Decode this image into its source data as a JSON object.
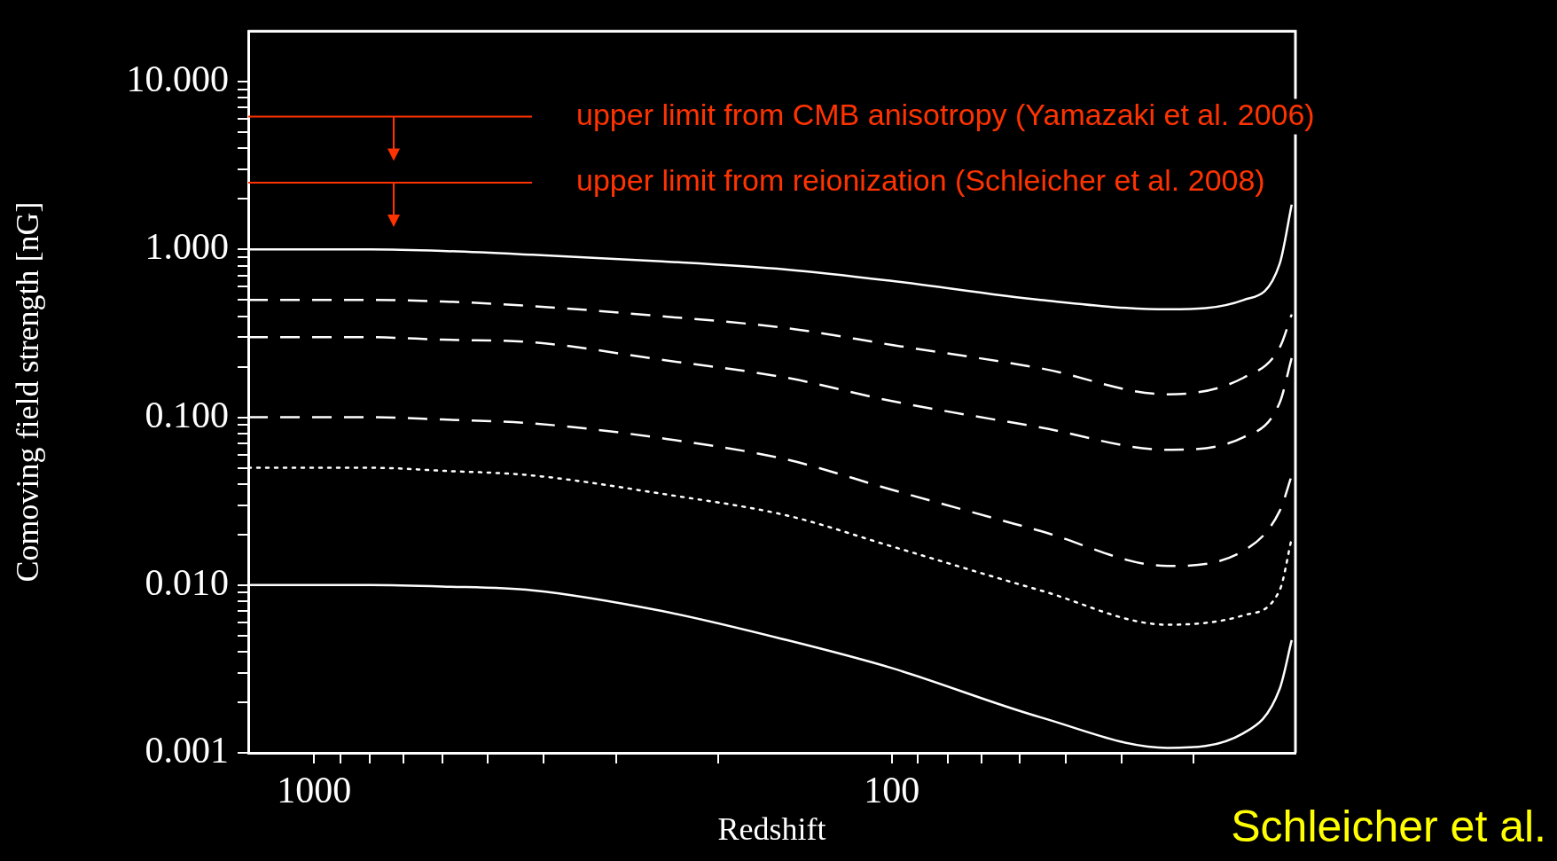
{
  "chart_data": {
    "type": "line",
    "xlabel": "Redshift",
    "ylabel": "Comoving field strength [nG]",
    "log": "xy",
    "grid": false,
    "legend": false,
    "marker": "none",
    "xlim": [
      1300,
      20
    ],
    "ylim": [
      0.001,
      20
    ],
    "xticks": [
      {
        "value": 1000,
        "label": "1000"
      },
      {
        "value": 900,
        "label": null
      },
      {
        "value": 800,
        "label": null
      },
      {
        "value": 700,
        "label": null
      },
      {
        "value": 600,
        "label": null
      },
      {
        "value": 500,
        "label": null
      },
      {
        "value": 400,
        "label": null
      },
      {
        "value": 300,
        "label": null
      },
      {
        "value": 200,
        "label": null
      },
      {
        "value": 100,
        "label": "100"
      },
      {
        "value": 90,
        "label": null
      },
      {
        "value": 80,
        "label": null
      },
      {
        "value": 70,
        "label": null
      },
      {
        "value": 60,
        "label": null
      },
      {
        "value": 50,
        "label": null
      },
      {
        "value": 40,
        "label": null
      },
      {
        "value": 30,
        "label": null
      }
    ],
    "yticks": [
      {
        "value": 0.001,
        "label": "0.001"
      },
      {
        "value": 0.002,
        "label": null
      },
      {
        "value": 0.003,
        "label": null
      },
      {
        "value": 0.004,
        "label": null
      },
      {
        "value": 0.005,
        "label": null
      },
      {
        "value": 0.006,
        "label": null
      },
      {
        "value": 0.007,
        "label": null
      },
      {
        "value": 0.008,
        "label": null
      },
      {
        "value": 0.009,
        "label": null
      },
      {
        "value": 0.01,
        "label": "0.010"
      },
      {
        "value": 0.02,
        "label": null
      },
      {
        "value": 0.03,
        "label": null
      },
      {
        "value": 0.04,
        "label": null
      },
      {
        "value": 0.05,
        "label": null
      },
      {
        "value": 0.06,
        "label": null
      },
      {
        "value": 0.07,
        "label": null
      },
      {
        "value": 0.08,
        "label": null
      },
      {
        "value": 0.09,
        "label": null
      },
      {
        "value": 0.1,
        "label": "0.100"
      },
      {
        "value": 0.2,
        "label": null
      },
      {
        "value": 0.3,
        "label": null
      },
      {
        "value": 0.4,
        "label": null
      },
      {
        "value": 0.5,
        "label": null
      },
      {
        "value": 0.6,
        "label": null
      },
      {
        "value": 0.7,
        "label": null
      },
      {
        "value": 0.8,
        "label": null
      },
      {
        "value": 0.9,
        "label": null
      },
      {
        "value": 1,
        "label": "1.000"
      },
      {
        "value": 2,
        "label": null
      },
      {
        "value": 3,
        "label": null
      },
      {
        "value": 4,
        "label": null
      },
      {
        "value": 5,
        "label": null
      },
      {
        "value": 6,
        "label": null
      },
      {
        "value": 7,
        "label": null
      },
      {
        "value": 8,
        "label": null
      },
      {
        "value": 9,
        "label": null
      },
      {
        "value": 10,
        "label": "10.000"
      }
    ],
    "x": [
      1300,
      800,
      600,
      419,
      250,
      152,
      100,
      55.3,
      33.3,
      24.6,
      21.3,
      20.3
    ],
    "series": [
      {
        "color": "#ffffff",
        "line_style": "solid",
        "values": [
          1.0,
          1.0,
          0.98,
          0.93,
          0.85,
          0.76,
          0.65,
          0.5,
          0.44,
          0.5,
          0.82,
          1.85
        ]
      },
      {
        "color": "#ffffff",
        "line_style": "dashed",
        "values": [
          0.5,
          0.5,
          0.49,
          0.46,
          0.4,
          0.34,
          0.27,
          0.196,
          0.137,
          0.172,
          0.26,
          0.41
        ]
      },
      {
        "color": "#ffffff",
        "line_style": "dashed",
        "values": [
          0.3,
          0.3,
          0.29,
          0.28,
          0.22,
          0.172,
          0.125,
          0.087,
          0.064,
          0.076,
          0.122,
          0.226
        ]
      },
      {
        "color": "#ffffff",
        "line_style": "dashed",
        "values": [
          0.1,
          0.1,
          0.097,
          0.092,
          0.075,
          0.056,
          0.037,
          0.021,
          0.013,
          0.016,
          0.0276,
          0.045
        ]
      },
      {
        "color": "#ffffff",
        "line_style": "dotted",
        "values": [
          0.05,
          0.05,
          0.048,
          0.045,
          0.035,
          0.026,
          0.017,
          0.0093,
          0.0058,
          0.0066,
          0.0093,
          0.019
        ]
      },
      {
        "color": "#ffffff",
        "line_style": "solid",
        "values": [
          0.01,
          0.01,
          0.0098,
          0.0093,
          0.007,
          0.0047,
          0.0032,
          0.00163,
          0.00107,
          0.00131,
          0.0024,
          0.0047
        ]
      }
    ],
    "ref_lines": [
      {
        "axis": "y",
        "value": 6.2,
        "label": "upper limit from CMB anisotropy (Yamazaki et al. 2006)",
        "color": "#ff3300"
      },
      {
        "axis": "y",
        "value": 2.5,
        "label": "upper limit from reionization (Schleicher et al. 2008)",
        "color": "#ff3300"
      }
    ],
    "annotations": [
      "Schleicher et al."
    ]
  }
}
